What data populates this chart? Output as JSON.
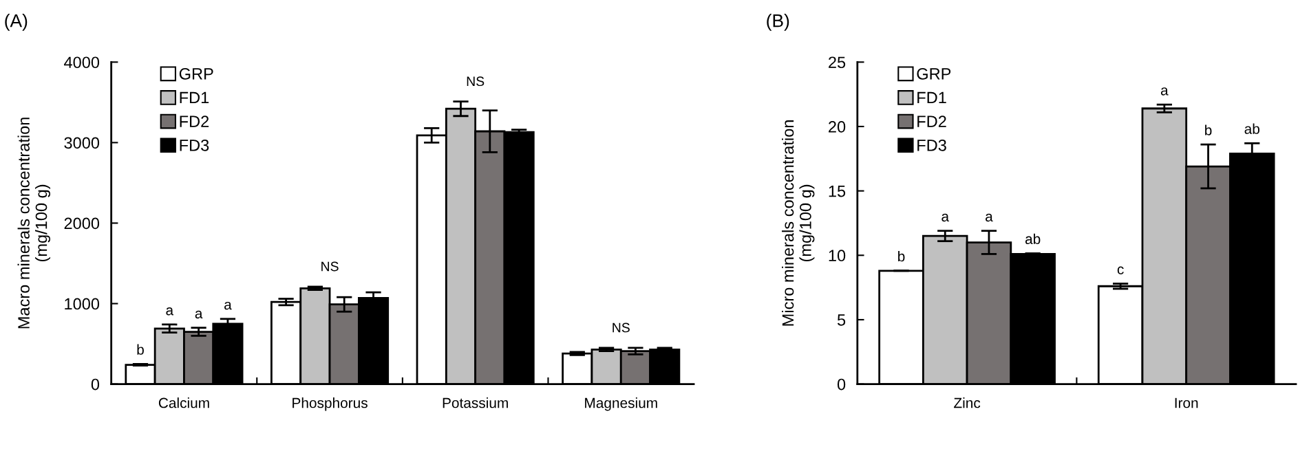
{
  "chart_data": [
    {
      "type": "bar",
      "title": "(A)",
      "ylabel": "Macro minerals concentration\n(mg/100 g)",
      "categories": [
        "Calcium",
        "Phosphorus",
        "Potassium",
        "Magnesium"
      ],
      "series": [
        {
          "name": "GRP",
          "color": "#ffffff",
          "values": [
            240,
            1020,
            3090,
            380
          ],
          "errors": [
            10,
            40,
            90,
            20
          ],
          "value_labels": [
            "b",
            null,
            null,
            null
          ]
        },
        {
          "name": "FD1",
          "color": "#c0c0c0",
          "values": [
            690,
            1190,
            3420,
            430
          ],
          "errors": [
            50,
            20,
            90,
            20
          ],
          "value_labels": [
            "a",
            null,
            null,
            null
          ]
        },
        {
          "name": "FD2",
          "color": "#767171",
          "values": [
            650,
            990,
            3140,
            410
          ],
          "errors": [
            50,
            90,
            260,
            40
          ],
          "value_labels": [
            "a",
            null,
            null,
            null
          ]
        },
        {
          "name": "FD3",
          "color": "#000000",
          "values": [
            750,
            1070,
            3130,
            430
          ],
          "errors": [
            60,
            70,
            30,
            20
          ],
          "value_labels": [
            "a",
            null,
            null,
            null
          ]
        }
      ],
      "ylim": [
        0,
        4000
      ],
      "yticks": [
        0,
        1000,
        2000,
        3000,
        4000
      ],
      "grid": false,
      "legend": "top left",
      "annotations": [
        "NS",
        "NS",
        "NS"
      ]
    },
    {
      "type": "bar",
      "title": "(B)",
      "ylabel": "Micro minerals concentration\n(mg/100 g)",
      "categories": [
        "Zinc",
        "Iron"
      ],
      "series": [
        {
          "name": "GRP",
          "color": "#ffffff",
          "values": [
            8.8,
            7.6
          ],
          "errors": [
            0,
            0.2
          ],
          "value_labels": [
            "b",
            "c"
          ]
        },
        {
          "name": "FD1",
          "color": "#c0c0c0",
          "values": [
            11.5,
            21.4
          ],
          "errors": [
            0.4,
            0.3
          ],
          "value_labels": [
            "a",
            "a"
          ]
        },
        {
          "name": "FD2",
          "color": "#767171",
          "values": [
            11.0,
            16.9
          ],
          "errors": [
            0.9,
            1.7
          ],
          "value_labels": [
            "a",
            "b"
          ]
        },
        {
          "name": "FD3",
          "color": "#000000",
          "values": [
            10.1,
            17.9
          ],
          "errors": [
            0.05,
            0.8
          ],
          "value_labels": [
            "ab",
            "ab"
          ]
        }
      ],
      "ylim": [
        0,
        25
      ],
      "yticks": [
        0,
        5,
        10,
        15,
        20,
        25
      ],
      "grid": false,
      "legend": "top left"
    }
  ]
}
